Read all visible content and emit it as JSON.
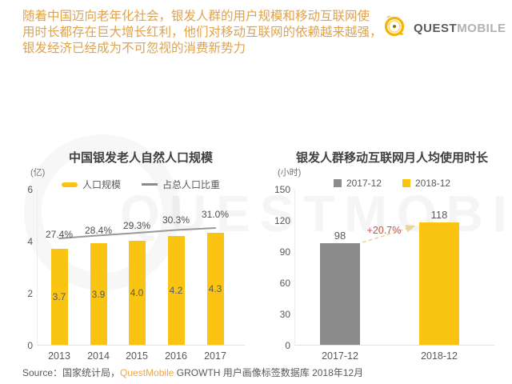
{
  "page": {
    "summary_lines": [
      "随着中国迈向老年化社会，银发人群的用户规模和移动互联网使",
      "用时长都存在巨大增长红利，他们对移动互联网的依赖越来越强，",
      "银发经济已经成为不可忽视的消费新势力"
    ],
    "logo": {
      "quest": "QUEST",
      "mobile": "MOBILE"
    },
    "watermark": "QUESTMOBILE",
    "footer": {
      "label": "Source：",
      "source": "国家统计局，",
      "brand": "QuestMobile",
      "rest": " GROWTH 用户画像标签数据库 2018年12月"
    }
  },
  "colors": {
    "brand_yellow": "#FAC412",
    "bar_gray": "#8C8C8C",
    "trend_line_gray": "#999999",
    "annotation_red": "#C4544A",
    "arrow_yellow": "#E8D59B",
    "header_text_orange": "#E0A24A",
    "footer_brand_orange": "#F0A643"
  },
  "chart_data": [
    {
      "type": "bar",
      "title": "中国银发老人自然人口规模",
      "unit": "(亿)",
      "categories": [
        "2013",
        "2014",
        "2015",
        "2016",
        "2017"
      ],
      "series": [
        {
          "name": "人口规模",
          "kind": "bar",
          "values": [
            3.7,
            3.9,
            4.0,
            4.2,
            4.3
          ],
          "color": "#FAC412"
        },
        {
          "name": "占总人口比重",
          "kind": "line",
          "values_pct": [
            27.4,
            28.4,
            29.3,
            30.3,
            31.0
          ],
          "labels": [
            "27.4%",
            "28.4%",
            "29.3%",
            "30.3%",
            "31.0%"
          ],
          "color": "#999999"
        }
      ],
      "ylim": [
        0,
        6
      ],
      "yticks": [
        0,
        2,
        4,
        6
      ],
      "legend_position": "top",
      "grid": false
    },
    {
      "type": "bar",
      "title": "银发人群移动互联网月人均使用时长",
      "unit": "(小时)",
      "categories": [
        "2017-12",
        "2018-12"
      ],
      "series": [
        {
          "name": "2017-12",
          "kind": "bar",
          "values": [
            98,
            null
          ],
          "color": "#8C8C8C"
        },
        {
          "name": "2018-12",
          "kind": "bar",
          "values": [
            null,
            118
          ],
          "color": "#FAC412"
        }
      ],
      "values_by_category": [
        98,
        118
      ],
      "annotation": {
        "text": "+20.7%",
        "color": "#C4544A"
      },
      "ylim": [
        0,
        150
      ],
      "yticks": [
        0,
        30,
        60,
        90,
        120,
        150
      ],
      "legend_position": "top",
      "grid": false
    }
  ]
}
